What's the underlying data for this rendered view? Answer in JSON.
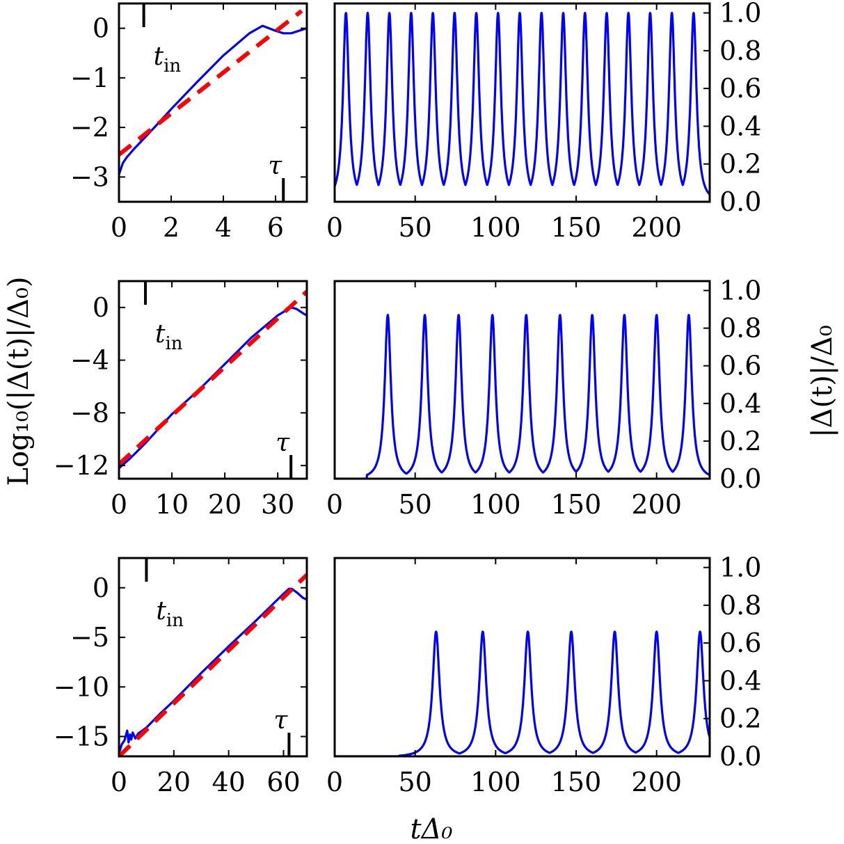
{
  "figure": {
    "xlabel": "tΔ₀",
    "left_ylabel": "Log₁₀(|Δ(t)|/Δ₀)",
    "right_ylabel": "|Δ(t)|/Δ₀"
  },
  "chart_data": [
    {
      "type": "line",
      "panel": "row1-left",
      "xlim": [
        0,
        7.2
      ],
      "ylim": [
        -3.5,
        0.5
      ],
      "xticks": [
        0,
        2,
        4,
        6
      ],
      "yticks": [
        0,
        -1,
        -2,
        -3
      ],
      "xtick_labels": [
        "0",
        "2",
        "4",
        "6"
      ],
      "ytick_labels": [
        "0",
        "−1",
        "−2",
        "−3"
      ],
      "annotations": {
        "t_in": "t",
        "t_in_sub": "in",
        "tau": "τ"
      },
      "t_in_x": 0.95,
      "tau_x": 6.3,
      "series": [
        {
          "name": "numerical",
          "color": "#0000ff",
          "style": "solid",
          "x": [
            0,
            0.15,
            0.3,
            0.6,
            1,
            1.5,
            2,
            3,
            4,
            5,
            5.5,
            6,
            6.3,
            6.6,
            6.9,
            7.2
          ],
          "y": [
            -2.95,
            -2.72,
            -2.6,
            -2.42,
            -2.2,
            -1.92,
            -1.63,
            -1.08,
            -0.55,
            -0.1,
            0.05,
            -0.05,
            -0.1,
            -0.1,
            -0.05,
            0
          ]
        },
        {
          "name": "fit",
          "color": "#ff0000",
          "style": "dashed",
          "x": [
            0,
            7
          ],
          "y": [
            -2.55,
            0.35
          ]
        }
      ]
    },
    {
      "type": "line",
      "panel": "row1-right",
      "xlim": [
        0,
        233
      ],
      "ylim": [
        0,
        1.05
      ],
      "xticks": [
        0,
        50,
        100,
        150,
        200
      ],
      "yticks": [
        0,
        0.2,
        0.4,
        0.6,
        0.8,
        1.0
      ],
      "xtick_labels": [
        "0",
        "50",
        "100",
        "150",
        "200"
      ],
      "ytick_labels": [
        "0.0",
        "0.2",
        "0.4",
        "0.6",
        "0.8",
        "1.0"
      ],
      "series": [
        {
          "name": "|Δ(t)|/Δ₀",
          "color": "#0000ff",
          "peaks": [
            7,
            20.5,
            34,
            47.5,
            61,
            74.5,
            88,
            101.5,
            115,
            128.5,
            142,
            155.5,
            169,
            182.5,
            196,
            209.5,
            223
          ],
          "amplitude": 1.0,
          "width": 2.2,
          "start": 0
        }
      ]
    },
    {
      "type": "line",
      "panel": "row2-left",
      "xlim": [
        0,
        35.5
      ],
      "ylim": [
        -13,
        2
      ],
      "xticks": [
        0,
        10,
        20,
        30
      ],
      "yticks": [
        0,
        -4,
        -8,
        -12
      ],
      "xtick_labels": [
        "0",
        "10",
        "20",
        "30"
      ],
      "ytick_labels": [
        "0",
        "−4",
        "−8",
        "−12"
      ],
      "annotations": {
        "t_in": "t",
        "t_in_sub": "in",
        "tau": "τ"
      },
      "t_in_x": 5,
      "tau_x": 32.5,
      "series": [
        {
          "name": "numerical",
          "color": "#0000ff",
          "style": "solid",
          "x": [
            0,
            2,
            5,
            10,
            15,
            20,
            25,
            30,
            32.5,
            33.5,
            35,
            35.5
          ],
          "y": [
            -12.2,
            -11.5,
            -10.3,
            -8.1,
            -6.3,
            -4.3,
            -2.3,
            -0.6,
            0,
            -0.1,
            -0.5,
            -0.6
          ]
        },
        {
          "name": "fit",
          "color": "#ff0000",
          "style": "dashed",
          "x": [
            0,
            35.5
          ],
          "y": [
            -11.9,
            1.2
          ]
        }
      ]
    },
    {
      "type": "line",
      "panel": "row2-right",
      "xlim": [
        0,
        233
      ],
      "ylim": [
        0,
        1.05
      ],
      "xticks": [
        0,
        50,
        100,
        150,
        200
      ],
      "yticks": [
        0,
        0.2,
        0.4,
        0.6,
        0.8,
        1.0
      ],
      "xtick_labels": [
        "0",
        "50",
        "100",
        "150",
        "200"
      ],
      "ytick_labels": [
        "0.0",
        "0.2",
        "0.4",
        "0.6",
        "0.8",
        "1.0"
      ],
      "series": [
        {
          "name": "|Δ(t)|/Δ₀",
          "color": "#0000ff",
          "peaks": [
            33,
            56,
            77,
            98,
            119,
            140,
            160,
            180,
            200,
            220
          ],
          "amplitude": 0.87,
          "width": 2.3,
          "start": 20
        }
      ]
    },
    {
      "type": "line",
      "panel": "row3-left",
      "xlim": [
        0,
        68.5
      ],
      "ylim": [
        -17,
        3
      ],
      "xticks": [
        0,
        20,
        40,
        60
      ],
      "yticks": [
        0,
        -5,
        -10,
        -15
      ],
      "xtick_labels": [
        "0",
        "20",
        "40",
        "60"
      ],
      "ytick_labels": [
        "0",
        "−5",
        "−10",
        "−15"
      ],
      "annotations": {
        "t_in": "t",
        "t_in_sub": "in",
        "tau": "τ"
      },
      "t_in_x": 10,
      "tau_x": 62,
      "series": [
        {
          "name": "numerical",
          "color": "#0000ff",
          "style": "solid",
          "x": [
            0,
            1,
            2,
            3,
            3.5,
            4,
            4.5,
            5,
            6,
            7,
            8,
            10,
            15,
            20,
            30,
            40,
            50,
            60,
            62,
            63,
            65,
            67,
            68.5
          ],
          "y": [
            -16.7,
            -15.8,
            -15.4,
            -14.4,
            -15.6,
            -14.8,
            -15.3,
            -14.6,
            -15.2,
            -14.7,
            -14.5,
            -14.1,
            -12.7,
            -11.4,
            -8.6,
            -5.9,
            -3.3,
            -0.6,
            -0.1,
            -0.1,
            -0.5,
            -1.0,
            -1.2
          ]
        },
        {
          "name": "fit",
          "color": "#ff0000",
          "style": "dashed",
          "x": [
            0,
            68.5
          ],
          "y": [
            -17.0,
            1.3
          ]
        }
      ]
    },
    {
      "type": "line",
      "panel": "row3-right",
      "xlim": [
        0,
        233
      ],
      "ylim": [
        0,
        1.05
      ],
      "xticks": [
        0,
        50,
        100,
        150,
        200
      ],
      "yticks": [
        0,
        0.2,
        0.4,
        0.6,
        0.8,
        1.0
      ],
      "xtick_labels": [
        "0",
        "50",
        "100",
        "150",
        "200"
      ],
      "ytick_labels": [
        "0.0",
        "0.2",
        "0.4",
        "0.6",
        "0.8",
        "1.0"
      ],
      "series": [
        {
          "name": "|Δ(t)|/Δ₀",
          "color": "#0000ff",
          "peaks": [
            63,
            92,
            120,
            147,
            174,
            200,
            227
          ],
          "amplitude": 0.66,
          "width": 2.6,
          "start": 40
        }
      ]
    }
  ]
}
